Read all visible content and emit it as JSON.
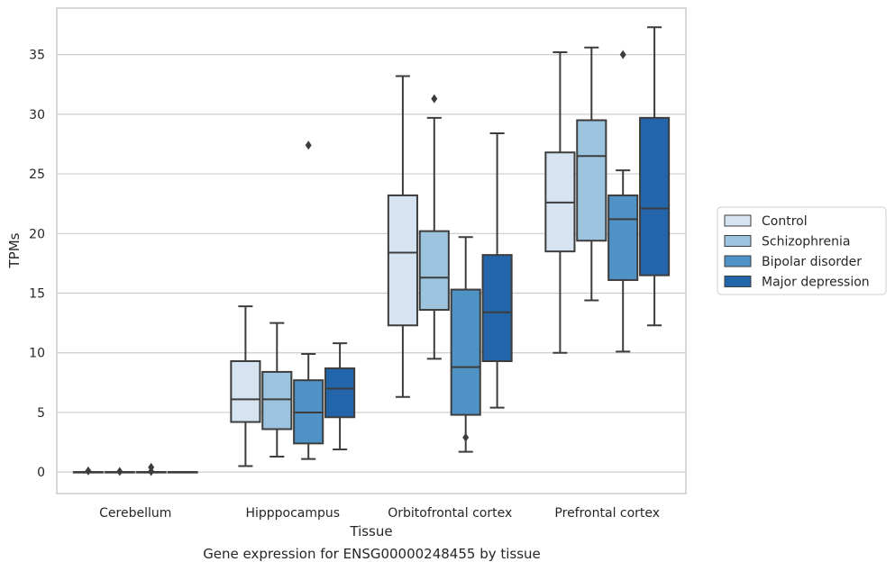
{
  "caption": "Gene expression for ENSG00000248455 by tissue",
  "chart_data": {
    "type": "box",
    "xlabel": "Tissue",
    "ylabel": "TPMs",
    "categories": [
      "Cerebellum",
      "Hipppocampus",
      "Orbitofrontal cortex",
      "Prefrontal cortex"
    ],
    "yticks": [
      0,
      5,
      10,
      15,
      20,
      25,
      30,
      35
    ],
    "ylim": [
      -1.8,
      38.9
    ],
    "grid": "horizontal",
    "legend_position": "right",
    "series": [
      {
        "name": "Control",
        "color": "#d6e4f1",
        "boxes": [
          {
            "whislo": 0,
            "q1": 0,
            "med": 0,
            "q3": 0,
            "whishi": 0,
            "fliers": [
              0.1
            ]
          },
          {
            "whislo": 0.5,
            "q1": 4.2,
            "med": 6.1,
            "q3": 9.3,
            "whishi": 13.9,
            "fliers": []
          },
          {
            "whislo": 6.3,
            "q1": 12.3,
            "med": 18.4,
            "q3": 23.2,
            "whishi": 33.2,
            "fliers": []
          },
          {
            "whislo": 10.0,
            "q1": 18.5,
            "med": 22.6,
            "q3": 26.8,
            "whishi": 35.2,
            "fliers": []
          }
        ]
      },
      {
        "name": "Schizophrenia",
        "color": "#9cc4de",
        "boxes": [
          {
            "whislo": 0,
            "q1": 0,
            "med": 0,
            "q3": 0,
            "whishi": 0,
            "fliers": [
              0.05
            ]
          },
          {
            "whislo": 1.3,
            "q1": 3.6,
            "med": 6.1,
            "q3": 8.4,
            "whishi": 12.5,
            "fliers": []
          },
          {
            "whislo": 9.5,
            "q1": 13.6,
            "med": 16.3,
            "q3": 20.2,
            "whishi": 29.7,
            "fliers": [
              31.3
            ]
          },
          {
            "whislo": 14.4,
            "q1": 19.4,
            "med": 26.5,
            "q3": 29.5,
            "whishi": 35.6,
            "fliers": []
          }
        ]
      },
      {
        "name": "Bipolar disorder",
        "color": "#4f93c6",
        "boxes": [
          {
            "whislo": 0,
            "q1": 0,
            "med": 0,
            "q3": 0,
            "whishi": 0,
            "fliers": [
              0.05,
              0.4
            ]
          },
          {
            "whislo": 1.1,
            "q1": 2.4,
            "med": 5.0,
            "q3": 7.7,
            "whishi": 9.9,
            "fliers": [
              27.4
            ]
          },
          {
            "whislo": 1.7,
            "q1": 4.8,
            "med": 8.8,
            "q3": 15.3,
            "whishi": 19.7,
            "fliers": [
              2.9
            ]
          },
          {
            "whislo": 10.1,
            "q1": 16.1,
            "med": 21.2,
            "q3": 23.2,
            "whishi": 25.3,
            "fliers": [
              35.0
            ]
          }
        ]
      },
      {
        "name": "Major depression",
        "color": "#2265ab",
        "boxes": [
          {
            "whislo": 0,
            "q1": 0,
            "med": 0,
            "q3": 0,
            "whishi": 0,
            "fliers": []
          },
          {
            "whislo": 1.9,
            "q1": 4.6,
            "med": 7.0,
            "q3": 8.7,
            "whishi": 10.8,
            "fliers": []
          },
          {
            "whislo": 5.4,
            "q1": 9.3,
            "med": 13.4,
            "q3": 18.2,
            "whishi": 28.4,
            "fliers": []
          },
          {
            "whislo": 12.3,
            "q1": 16.5,
            "med": 22.1,
            "q3": 29.7,
            "whishi": 37.3,
            "fliers": []
          }
        ]
      }
    ]
  }
}
